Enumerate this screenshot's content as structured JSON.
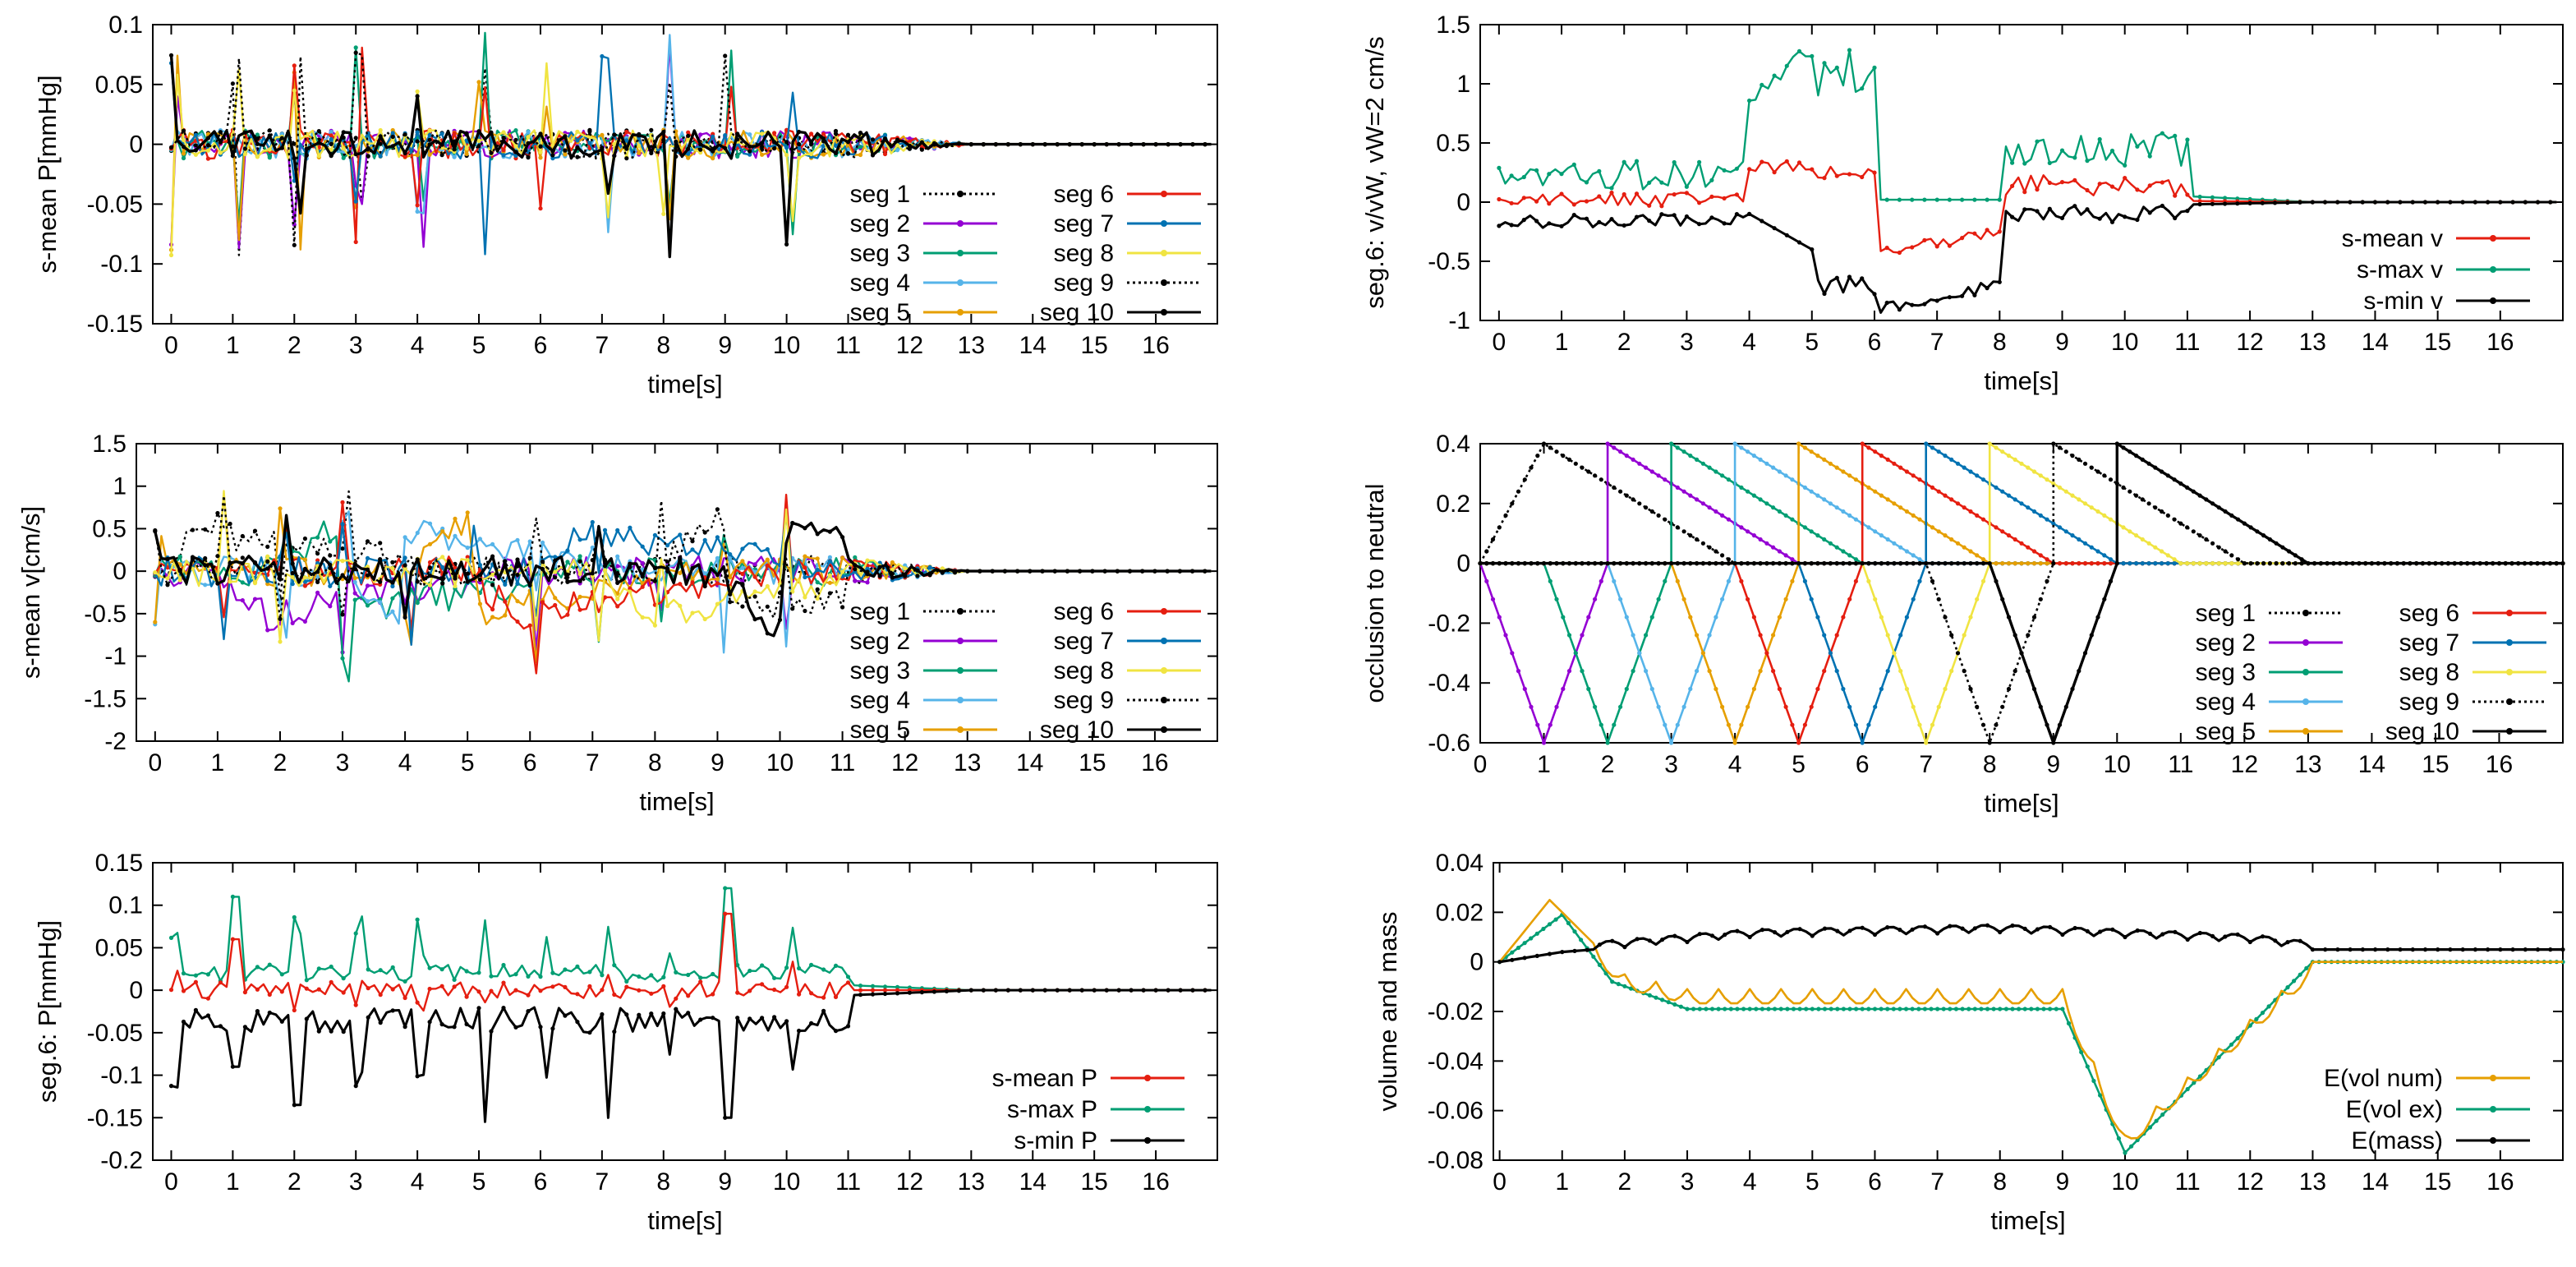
{
  "palette": {
    "seg1": "#000000",
    "seg2": "#9400d3",
    "seg3": "#009e73",
    "seg4": "#56b4e9",
    "seg5": "#e69f00",
    "seg6": "#e51e10",
    "seg7": "#0072b2",
    "seg8": "#f0e442",
    "seg9": "#000000",
    "seg10": "#000000",
    "red": "#e51e10",
    "green": "#009e73",
    "black": "#000000",
    "orange": "#e69f00"
  },
  "chart_data": [
    {
      "id": "p1",
      "type": "line",
      "ylabel": "s-mean P[mmHg]",
      "xlabel": "time[s]",
      "xlim": [
        -0.3,
        17
      ],
      "ylim": [
        -0.15,
        0.1
      ],
      "xticks": [
        "0",
        "1",
        "2",
        "3",
        "4",
        "5",
        "6",
        "7",
        "8",
        "9",
        "10",
        "11",
        "12",
        "13",
        "14",
        "15",
        "16"
      ],
      "yticks": [
        "-0.15",
        "-0.1",
        "-0.05",
        "0",
        "0.05",
        "0.1"
      ],
      "series_kind": "segments-pressure",
      "legend": [
        "seg 1",
        "seg 2",
        "seg 3",
        "seg 4",
        "seg 5",
        "seg 6",
        "seg 7",
        "seg 8",
        "seg 9",
        "seg 10"
      ]
    },
    {
      "id": "p2",
      "type": "line",
      "ylabel": "seg.6:  v/vW, vW=2 cm/s",
      "xlabel": "time[s]",
      "xlim": [
        -0.3,
        17
      ],
      "ylim": [
        -1,
        1.5
      ],
      "xticks": [
        "0",
        "1",
        "2",
        "3",
        "4",
        "5",
        "6",
        "7",
        "8",
        "9",
        "10",
        "11",
        "12",
        "13",
        "14",
        "15",
        "16"
      ],
      "yticks": [
        "-1",
        "-0.5",
        "0",
        "0.5",
        "1",
        "1.5"
      ],
      "series_kind": "seg6-velocity",
      "legend": [
        "s-mean v",
        "s-max  v",
        "s-min  v"
      ]
    },
    {
      "id": "p3",
      "type": "line",
      "ylabel": "s-mean v[cm/s]",
      "xlabel": "time[s]",
      "xlim": [
        -0.3,
        17
      ],
      "ylim": [
        -2,
        1.5
      ],
      "xticks": [
        "0",
        "1",
        "2",
        "3",
        "4",
        "5",
        "6",
        "7",
        "8",
        "9",
        "10",
        "11",
        "12",
        "13",
        "14",
        "15",
        "16"
      ],
      "yticks": [
        "-2",
        "-1.5",
        "-1",
        "-0.5",
        "0",
        "0.5",
        "1",
        "1.5"
      ],
      "series_kind": "segments-velocity",
      "legend": [
        "seg 1",
        "seg 2",
        "seg 3",
        "seg 4",
        "seg 5",
        "seg 6",
        "seg 7",
        "seg 8",
        "seg 9",
        "seg 10"
      ]
    },
    {
      "id": "p4",
      "type": "line",
      "ylabel": "occlusion to neutral",
      "xlabel": "time[s]",
      "xlim": [
        0,
        17
      ],
      "ylim": [
        -0.6,
        0.4
      ],
      "xticks": [
        "0",
        "1",
        "2",
        "3",
        "4",
        "5",
        "6",
        "7",
        "8",
        "9",
        "10",
        "11",
        "12",
        "13",
        "14",
        "15",
        "16"
      ],
      "yticks": [
        "-0.6",
        "-0.4",
        "-0.2",
        "0",
        "0.2",
        "0.4"
      ],
      "series_kind": "occlusion",
      "occlusion": [
        {
          "seg": 1,
          "start": 0,
          "peak_t": 1,
          "peak": 0.4,
          "end": 4
        },
        {
          "seg": 2,
          "start": 0,
          "peak_t": 1,
          "peak": -0.6,
          "end": 2,
          "rise_t": 2,
          "top_t": 2,
          "top": 0.4,
          "top_end": 5
        },
        {
          "seg": 3,
          "start": 1,
          "peak_t": 2,
          "peak": -0.6,
          "end": 3,
          "top_t": 3,
          "top": 0.4,
          "top_end": 6
        },
        {
          "seg": 4,
          "start": 2,
          "peak_t": 3,
          "peak": -0.6,
          "end": 4,
          "top_t": 4,
          "top": 0.4,
          "top_end": 7
        },
        {
          "seg": 5,
          "start": 3,
          "peak_t": 4,
          "peak": -0.6,
          "end": 5,
          "top_t": 5,
          "top": 0.4,
          "top_end": 8
        },
        {
          "seg": 6,
          "start": 4,
          "peak_t": 5,
          "peak": -0.6,
          "end": 6,
          "top_t": 6,
          "top": 0.4,
          "top_end": 9
        },
        {
          "seg": 7,
          "start": 5,
          "peak_t": 6,
          "peak": -0.6,
          "end": 7,
          "top_t": 7,
          "top": 0.4,
          "top_end": 10
        },
        {
          "seg": 8,
          "start": 6,
          "peak_t": 7,
          "peak": -0.6,
          "end": 8,
          "top_t": 8,
          "top": 0.4,
          "top_end": 11
        },
        {
          "seg": 9,
          "start": 7,
          "peak_t": 8,
          "peak": -0.6,
          "end": 9,
          "top_t": 9,
          "top": 0.4,
          "top_end": 12
        },
        {
          "seg": 10,
          "start": 8,
          "peak_t": 9,
          "peak": -0.6,
          "end": 10,
          "top_t": 10,
          "top": 0.4,
          "top_end": 13
        }
      ],
      "legend": [
        "seg 1",
        "seg 2",
        "seg 3",
        "seg 4",
        "seg 5",
        "seg 6",
        "seg 7",
        "seg 8",
        "seg 9",
        "seg 10"
      ]
    },
    {
      "id": "p5",
      "type": "line",
      "ylabel": "seg.6: P[mmHg]",
      "xlabel": "time[s]",
      "xlim": [
        -0.3,
        17
      ],
      "ylim": [
        -0.2,
        0.15
      ],
      "xticks": [
        "0",
        "1",
        "2",
        "3",
        "4",
        "5",
        "6",
        "7",
        "8",
        "9",
        "10",
        "11",
        "12",
        "13",
        "14",
        "15",
        "16"
      ],
      "yticks": [
        "-0.2",
        "-0.15",
        "-0.1",
        "-0.05",
        "0",
        "0.05",
        "0.1",
        "0.15"
      ],
      "series_kind": "seg6-pressure",
      "legend": [
        "s-mean P",
        "s-max  P",
        "s-min  P"
      ]
    },
    {
      "id": "p6",
      "type": "line",
      "ylabel": "volume and mass",
      "xlabel": "time[s]",
      "xlim": [
        -0.1,
        17
      ],
      "ylim": [
        -0.08,
        0.04
      ],
      "xticks": [
        "0",
        "1",
        "2",
        "3",
        "4",
        "5",
        "6",
        "7",
        "8",
        "9",
        "10",
        "11",
        "12",
        "13",
        "14",
        "15",
        "16"
      ],
      "yticks": [
        "-0.08",
        "-0.06",
        "-0.04",
        "-0.02",
        "0",
        "0.02",
        "0.04"
      ],
      "series_kind": "conservation",
      "vol_ex": {
        "x": [
          0,
          1,
          1.8,
          3,
          9,
          10,
          13,
          17
        ],
        "y": [
          0,
          0.019,
          -0.008,
          -0.019,
          -0.019,
          -0.077,
          0,
          0
        ]
      },
      "vol_num": {
        "x": [
          0,
          0.8,
          1.2,
          2,
          3,
          9,
          10,
          13,
          17
        ],
        "y": [
          0,
          0.025,
          0.015,
          -0.005,
          -0.011,
          -0.011,
          -0.07,
          0,
          0
        ]
      },
      "mass": {
        "x": [
          0,
          0.5,
          1,
          2,
          4,
          8,
          12,
          13,
          17
        ],
        "y": [
          0,
          0.002,
          0.004,
          0.006,
          0.01,
          0.012,
          0.008,
          0.005,
          0.005
        ]
      },
      "legend": [
        "E(vol num)",
        "E(vol ex)",
        "E(mass)"
      ]
    }
  ]
}
